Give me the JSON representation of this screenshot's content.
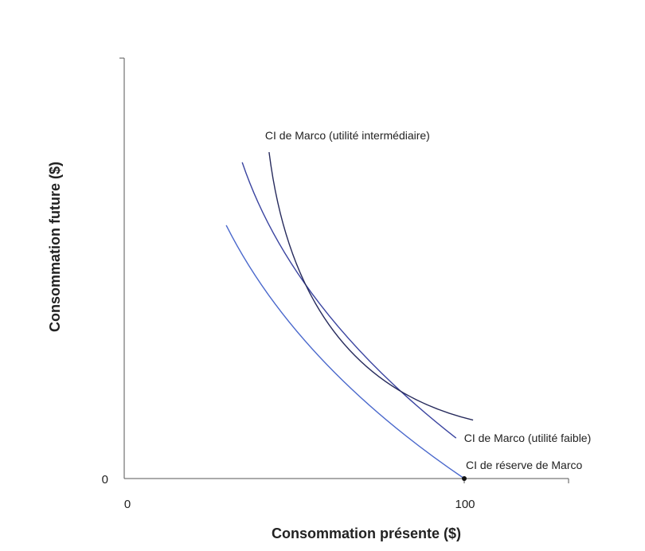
{
  "chart_data": {
    "type": "line",
    "title": "",
    "xlabel": "Consommation présente ($)",
    "ylabel": "Consommation future ($)",
    "xlim": [
      0,
      130.7
    ],
    "ylim": [
      0,
      123.6
    ],
    "x_ticks": [
      {
        "value": 0,
        "label": "0"
      },
      {
        "value": 100,
        "label": "100"
      }
    ],
    "y_ticks": [
      {
        "value": 0,
        "label": "0"
      }
    ],
    "grid": false,
    "series": [
      {
        "name": "CI de réserve de Marco",
        "color": "#4a68cc",
        "points": [
          [
            30,
            74.5
          ],
          [
            57.8,
            35.4
          ],
          [
            100,
            0
          ]
        ]
      },
      {
        "name": "CI de Marco (utilité faible)",
        "color": "#3a44a0",
        "points": [
          [
            34.7,
            93
          ],
          [
            57.8,
            51
          ],
          [
            97.6,
            11.9
          ]
        ]
      },
      {
        "name": "CI de Marco (utilité intermédiaire)",
        "color": "#262a5c",
        "points": [
          [
            42.6,
            96
          ],
          [
            61.8,
            43.1
          ],
          [
            102.6,
            17.2
          ]
        ]
      }
    ],
    "annotations": [
      {
        "text": "CI de Marco (utilité intermédiaire)",
        "series": 2,
        "anchor": "start-top"
      },
      {
        "text": "CI de Marco (utilité faible)",
        "series": 1,
        "anchor": "end-right"
      },
      {
        "text": "CI de réserve de Marco",
        "series": 0,
        "anchor": "end-above"
      }
    ],
    "points": [
      {
        "x": 100,
        "y": 0,
        "label": ""
      }
    ]
  }
}
